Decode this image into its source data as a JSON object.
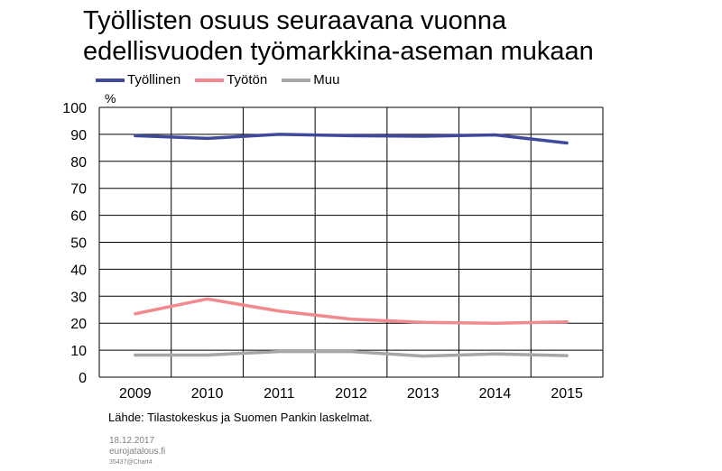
{
  "chart_data": {
    "type": "line",
    "title_lines": [
      "Työllisten osuus seuraavana vuonna",
      "edellisvuoden työmarkkina-aseman mukaan"
    ],
    "ylabel": "%",
    "xlabel": "",
    "categories": [
      "2009",
      "2010",
      "2011",
      "2012",
      "2013",
      "2014",
      "2015"
    ],
    "yticks": [
      "0",
      "10",
      "20",
      "30",
      "40",
      "50",
      "60",
      "70",
      "80",
      "90",
      "100"
    ],
    "ylim": [
      0,
      100
    ],
    "grid": true,
    "legend_position": "top-left",
    "series": [
      {
        "name": "Työllinen",
        "color": "#3f4a9c",
        "values": [
          89.5,
          88.5,
          90,
          89.5,
          89.3,
          89.8,
          86.8
        ]
      },
      {
        "name": "Työtön",
        "color": "#f08a8f",
        "values": [
          23.5,
          29,
          24.5,
          21.5,
          20.3,
          20,
          20.5
        ]
      },
      {
        "name": "Muu",
        "color": "#a6a6a6",
        "values": [
          8.2,
          8.2,
          9.5,
          9.5,
          7.8,
          8.6,
          8
        ]
      }
    ]
  },
  "source": "Lähde: Tilastokeskus ja Suomen Pankin laskelmat.",
  "footer": {
    "date": "18.12.2017",
    "site": "eurojatalous.fi",
    "code": "35437@Chart4"
  }
}
